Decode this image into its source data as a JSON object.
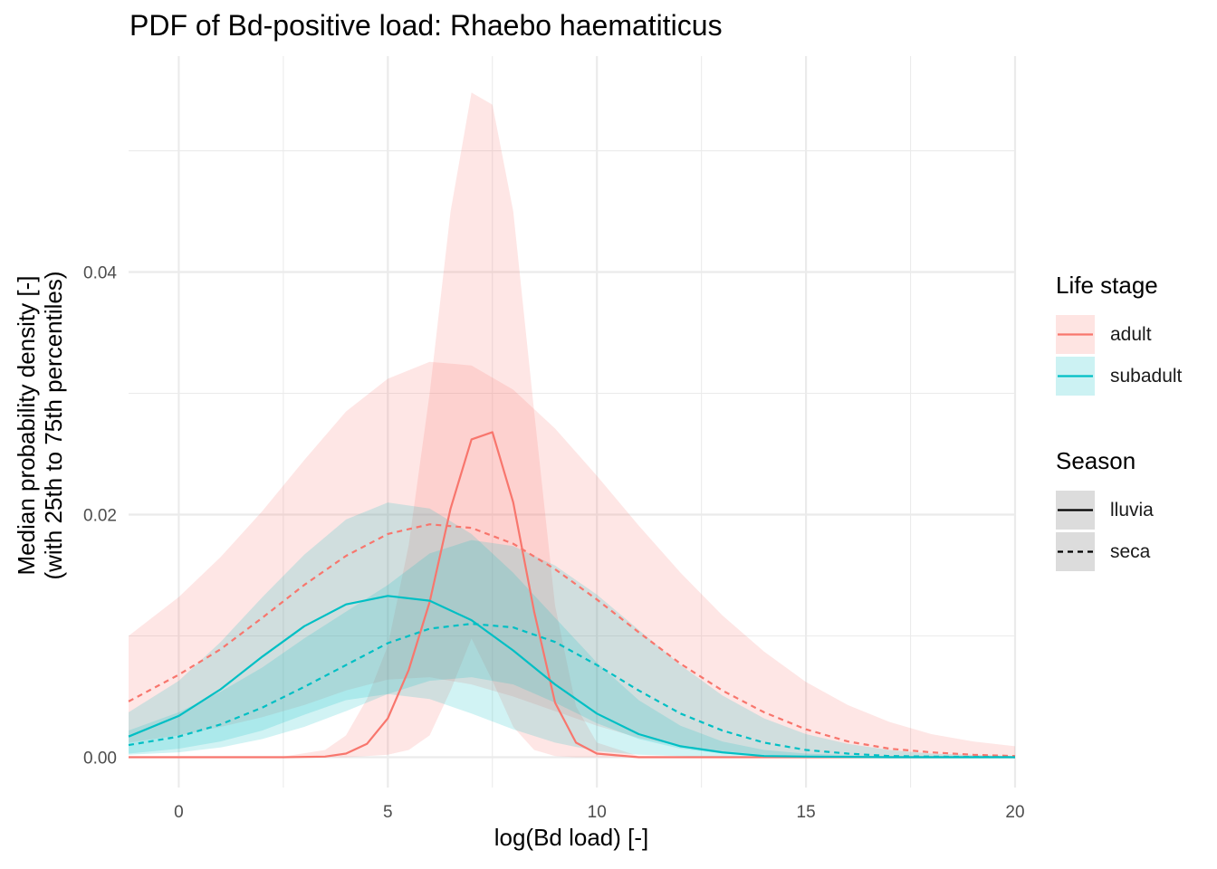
{
  "chart_data": {
    "type": "area",
    "title": "PDF of Bd-positive load: Rhaebo haematiticus",
    "xlabel": "log(Bd load) [-]",
    "ylabel": "Median probability density [-]",
    "ylabel_line2": "(with 25th to 75th percentiles)",
    "xlim": [
      -1.2,
      20
    ],
    "ylim": [
      -0.0025,
      0.0578
    ],
    "x_ticks": [
      0,
      5,
      10,
      15,
      20
    ],
    "x_tick_labels": [
      "0",
      "5",
      "10",
      "15",
      "20"
    ],
    "y_ticks": [
      0,
      0.02,
      0.04
    ],
    "y_tick_labels": [
      "0.00",
      "0.02",
      "0.04"
    ],
    "grid": true,
    "legend_position": "right",
    "legend": {
      "life_stage_title": "Life stage",
      "season_title": "Season",
      "life_stage": [
        {
          "label": "adult",
          "color": "#F8766D"
        },
        {
          "label": "subadult",
          "color": "#00BFC4"
        }
      ],
      "season": [
        {
          "label": "lluvia",
          "linetype": "solid"
        },
        {
          "label": "seca",
          "linetype": "dashed"
        }
      ]
    },
    "series": [
      {
        "life_stage": "adult",
        "season": "lluvia",
        "color": "#F8766D",
        "linetype": "solid",
        "x": [
          -1.2,
          2.5,
          3.5,
          4.0,
          4.5,
          5.0,
          5.5,
          6.0,
          6.5,
          7.0,
          7.5,
          8.0,
          8.5,
          9.0,
          9.5,
          10.0,
          11.0,
          20.0
        ],
        "median": [
          0,
          0,
          5e-05,
          0.0003,
          0.0011,
          0.0032,
          0.0072,
          0.0128,
          0.0205,
          0.0262,
          0.0268,
          0.021,
          0.012,
          0.0045,
          0.0012,
          0.0003,
          0,
          0
        ],
        "lower": [
          0,
          0,
          0,
          0,
          0.0001,
          0.0002,
          0.0006,
          0.0018,
          0.0055,
          0.0098,
          0.0063,
          0.0025,
          0.0006,
          0.0001,
          0,
          0,
          0,
          0
        ],
        "upper": [
          0,
          5e-05,
          0.0006,
          0.0018,
          0.0048,
          0.0092,
          0.0175,
          0.03,
          0.045,
          0.0548,
          0.0538,
          0.045,
          0.0285,
          0.0125,
          0.0042,
          0.0012,
          0.0001,
          0
        ]
      },
      {
        "life_stage": "adult",
        "season": "seca",
        "color": "#F8766D",
        "linetype": "dashed",
        "x": [
          -1.2,
          0,
          1,
          2,
          3,
          4,
          5,
          6,
          7,
          8,
          9,
          10,
          11,
          12,
          13,
          14,
          15,
          16,
          17,
          18,
          19,
          20
        ],
        "median": [
          0.0046,
          0.0068,
          0.0089,
          0.0115,
          0.0142,
          0.0166,
          0.0184,
          0.0192,
          0.0189,
          0.0176,
          0.0155,
          0.013,
          0.0103,
          0.0077,
          0.0055,
          0.0037,
          0.0023,
          0.0013,
          0.0007,
          0.0004,
          0.0002,
          0.0001
        ],
        "lower": [
          0.0012,
          0.0018,
          0.0025,
          0.0033,
          0.0043,
          0.0055,
          0.0064,
          0.0066,
          0.006,
          0.005,
          0.0038,
          0.0026,
          0.0016,
          0.0009,
          0.0005,
          0.0002,
          0.0001,
          0,
          0,
          0,
          0,
          0
        ],
        "upper": [
          0.01,
          0.0132,
          0.0165,
          0.0203,
          0.0245,
          0.0285,
          0.0312,
          0.0326,
          0.0323,
          0.0303,
          0.0271,
          0.0232,
          0.0191,
          0.0152,
          0.0117,
          0.0087,
          0.0062,
          0.0043,
          0.0029,
          0.0019,
          0.0013,
          0.0009
        ]
      },
      {
        "life_stage": "subadult",
        "season": "lluvia",
        "color": "#00BFC4",
        "linetype": "solid",
        "x": [
          -1.2,
          0,
          1,
          2,
          3,
          4,
          5,
          6,
          7,
          8,
          9,
          10,
          11,
          12,
          13,
          14,
          15,
          17,
          20
        ],
        "median": [
          0.0017,
          0.0034,
          0.0056,
          0.0083,
          0.0108,
          0.0126,
          0.0133,
          0.0129,
          0.0113,
          0.0088,
          0.006,
          0.0036,
          0.0019,
          0.0009,
          0.0004,
          0.0001,
          5e-05,
          0,
          0
        ],
        "lower": [
          0.0003,
          0.0007,
          0.0013,
          0.0022,
          0.0035,
          0.0047,
          0.0052,
          0.0048,
          0.0036,
          0.0023,
          0.0012,
          0.0005,
          0.0002,
          0.0001,
          0,
          0,
          0,
          0,
          0
        ],
        "upper": [
          0.0037,
          0.0063,
          0.0095,
          0.0132,
          0.0167,
          0.0196,
          0.021,
          0.0205,
          0.0184,
          0.0152,
          0.0115,
          0.0078,
          0.0047,
          0.0026,
          0.0013,
          0.0006,
          0.0003,
          5e-05,
          0
        ]
      },
      {
        "life_stage": "subadult",
        "season": "seca",
        "color": "#00BFC4",
        "linetype": "dashed",
        "x": [
          -1.2,
          0,
          1,
          2,
          3,
          4,
          5,
          6,
          7,
          8,
          9,
          10,
          11,
          12,
          13,
          14,
          15,
          16,
          17,
          18,
          20
        ],
        "median": [
          0.001,
          0.0017,
          0.0027,
          0.0041,
          0.0058,
          0.0076,
          0.0094,
          0.0106,
          0.011,
          0.0107,
          0.0095,
          0.0076,
          0.0055,
          0.0036,
          0.0022,
          0.0012,
          0.0006,
          0.0003,
          0.0001,
          5e-05,
          0
        ],
        "lower": [
          0.0002,
          0.0004,
          0.0008,
          0.0015,
          0.0025,
          0.0038,
          0.0052,
          0.0063,
          0.0066,
          0.006,
          0.0045,
          0.0028,
          0.0015,
          0.0007,
          0.0003,
          0.0001,
          0,
          0,
          0,
          0,
          0
        ],
        "upper": [
          0.0022,
          0.0037,
          0.0054,
          0.0074,
          0.0098,
          0.012,
          0.0142,
          0.0168,
          0.0179,
          0.0174,
          0.0158,
          0.0134,
          0.0105,
          0.0076,
          0.0051,
          0.0032,
          0.0019,
          0.0011,
          0.0006,
          0.0003,
          0.0001
        ]
      }
    ]
  }
}
